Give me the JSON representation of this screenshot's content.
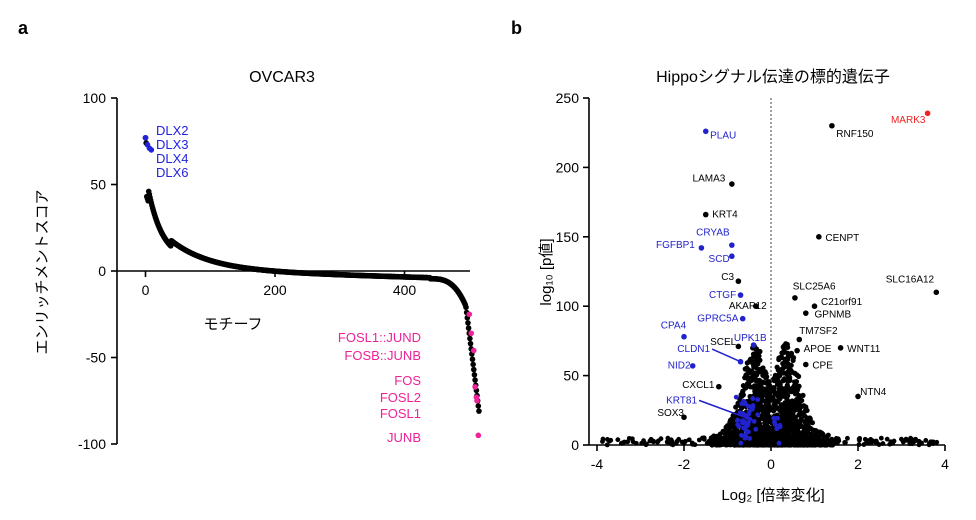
{
  "chart_data": [
    {
      "panel": "a",
      "type": "scatter",
      "title": "OVCAR3",
      "xlabel": "モチーフ",
      "ylabel": "エンリッチメントスコア",
      "xlim": [
        -10,
        525
      ],
      "ylim": [
        -100,
        100
      ],
      "xticks": [
        0,
        200,
        400
      ],
      "yticks": [
        100,
        50,
        0,
        -50,
        -100
      ],
      "ytick_labels": [
        "100",
        "50",
        "0",
        "-50",
        "-100"
      ],
      "labels_top": [
        "DLX2",
        "DLX3",
        "DLX4",
        "DLX6"
      ],
      "labels_bottom": [
        "FOSL1::JUND",
        "FOSB::JUNB",
        "FOS",
        "FOSL2",
        "FOSL1",
        "JUNB"
      ],
      "highlight_top": [
        [
          0,
          77
        ],
        [
          3,
          73
        ],
        [
          6,
          71
        ],
        [
          9,
          70
        ]
      ],
      "highlight_bottom": [
        [
          500,
          -25
        ],
        [
          503,
          -36
        ],
        [
          507,
          -46
        ],
        [
          509,
          -67
        ],
        [
          511,
          -73
        ],
        [
          512,
          -75
        ],
        [
          514,
          -95
        ]
      ],
      "colors": {
        "points": "#000000",
        "top": "#2222dd",
        "bottom": "#ee2299"
      }
    },
    {
      "panel": "b",
      "type": "scatter",
      "title": "Hippoシグナル伝達の標的遺伝子",
      "xlabel": "Log₂ [倍率変化]",
      "ylabel": "log₁₀ [p値]",
      "xlim": [
        -4,
        4
      ],
      "ylim": [
        0,
        250
      ],
      "xticks": [
        -4,
        -2,
        0,
        2,
        4
      ],
      "yticks": [
        0,
        50,
        100,
        150,
        200,
        250
      ],
      "colors": {
        "points": "#000000",
        "blue": "#2222cc",
        "red": "#ee2222"
      },
      "labeled_genes": [
        {
          "name": "MARK3",
          "x": 3.6,
          "y": 239,
          "color": "red",
          "lx": 3.55,
          "ly": 232,
          "anchor": "end"
        },
        {
          "name": "RNF150",
          "x": 1.4,
          "y": 230,
          "color": "black",
          "lx": 1.5,
          "ly": 222,
          "anchor": "start"
        },
        {
          "name": "PLAU",
          "x": -1.5,
          "y": 226,
          "color": "blue",
          "lx": -1.4,
          "ly": 221,
          "anchor": "start"
        },
        {
          "name": "LAMA3",
          "x": -0.9,
          "y": 188,
          "color": "black",
          "lx": -1.05,
          "ly": 190,
          "anchor": "end"
        },
        {
          "name": "KRT4",
          "x": -1.5,
          "y": 166,
          "color": "black",
          "lx": -1.35,
          "ly": 164,
          "anchor": "start"
        },
        {
          "name": "CENPT",
          "x": 1.1,
          "y": 150,
          "color": "black",
          "lx": 1.25,
          "ly": 147,
          "anchor": "start"
        },
        {
          "name": "CRYAB",
          "x": -0.9,
          "y": 144,
          "color": "blue",
          "lx": -0.95,
          "ly": 151,
          "anchor": "end"
        },
        {
          "name": "FGFBP1",
          "x": -1.6,
          "y": 142,
          "color": "blue",
          "lx": -1.75,
          "ly": 142,
          "anchor": "end"
        },
        {
          "name": "SCD",
          "x": -0.9,
          "y": 136,
          "color": "blue",
          "lx": -0.95,
          "ly": 132,
          "anchor": "end"
        },
        {
          "name": "C3",
          "x": -0.75,
          "y": 118,
          "color": "black",
          "lx": -0.85,
          "ly": 119,
          "anchor": "end"
        },
        {
          "name": "SLC16A12",
          "x": 3.8,
          "y": 110,
          "color": "black",
          "lx": 3.75,
          "ly": 117,
          "anchor": "end"
        },
        {
          "name": "SLC25A6",
          "x": 0.55,
          "y": 106,
          "color": "black",
          "lx": 0.5,
          "ly": 112,
          "anchor": "start"
        },
        {
          "name": "CTGF",
          "x": -0.7,
          "y": 108,
          "color": "blue",
          "lx": -0.8,
          "ly": 106,
          "anchor": "end"
        },
        {
          "name": "C21orf91",
          "x": 1.0,
          "y": 100,
          "color": "black",
          "lx": 1.15,
          "ly": 101,
          "anchor": "start"
        },
        {
          "name": "AKAP12",
          "x": -0.35,
          "y": 100,
          "color": "black",
          "lx": -0.1,
          "ly": 98,
          "anchor": "end"
        },
        {
          "name": "GPNMB",
          "x": 0.8,
          "y": 95,
          "color": "black",
          "lx": 1.0,
          "ly": 92,
          "anchor": "start"
        },
        {
          "name": "GPRC5A",
          "x": -0.65,
          "y": 91,
          "color": "blue",
          "lx": -0.75,
          "ly": 89,
          "anchor": "end"
        },
        {
          "name": "CPA4",
          "x": -2.0,
          "y": 78,
          "color": "blue",
          "lx": -1.95,
          "ly": 84,
          "anchor": "end"
        },
        {
          "name": "TM7SF2",
          "x": 0.65,
          "y": 76,
          "color": "black",
          "lx": 0.65,
          "ly": 80,
          "anchor": "start"
        },
        {
          "name": "UPK1B",
          "x": -0.4,
          "y": 72,
          "color": "blue",
          "lx": -0.1,
          "ly": 75,
          "anchor": "end"
        },
        {
          "name": "SCEL",
          "x": -0.75,
          "y": 71,
          "color": "black",
          "lx": -0.8,
          "ly": 72,
          "anchor": "end"
        },
        {
          "name": "APOE",
          "x": 0.6,
          "y": 68,
          "color": "black",
          "lx": 0.75,
          "ly": 67,
          "anchor": "start"
        },
        {
          "name": "WNT11",
          "x": 1.6,
          "y": 70,
          "color": "black",
          "lx": 1.75,
          "ly": 67,
          "anchor": "start"
        },
        {
          "name": "CLDN1",
          "x": -0.7,
          "y": 60,
          "color": "blue",
          "lx": -1.4,
          "ly": 67,
          "anchor": "end"
        },
        {
          "name": "NID2",
          "x": -1.8,
          "y": 57,
          "color": "blue",
          "lx": -1.85,
          "ly": 55,
          "anchor": "end"
        },
        {
          "name": "CPE",
          "x": 0.8,
          "y": 58,
          "color": "black",
          "lx": 0.95,
          "ly": 55,
          "anchor": "start"
        },
        {
          "name": "CXCL1",
          "x": -1.2,
          "y": 42,
          "color": "black",
          "lx": -1.3,
          "ly": 41,
          "anchor": "end"
        },
        {
          "name": "NTN4",
          "x": 2.0,
          "y": 35,
          "color": "black",
          "lx": 2.05,
          "ly": 36,
          "anchor": "start"
        },
        {
          "name": "KRT81",
          "x": -0.6,
          "y": 30,
          "color": "blue",
          "lx": -1.7,
          "ly": 30,
          "anchor": "end"
        },
        {
          "name": "SOX3",
          "x": -2.0,
          "y": 20,
          "color": "black",
          "lx": -2.0,
          "ly": 21,
          "anchor": "end"
        }
      ]
    }
  ]
}
